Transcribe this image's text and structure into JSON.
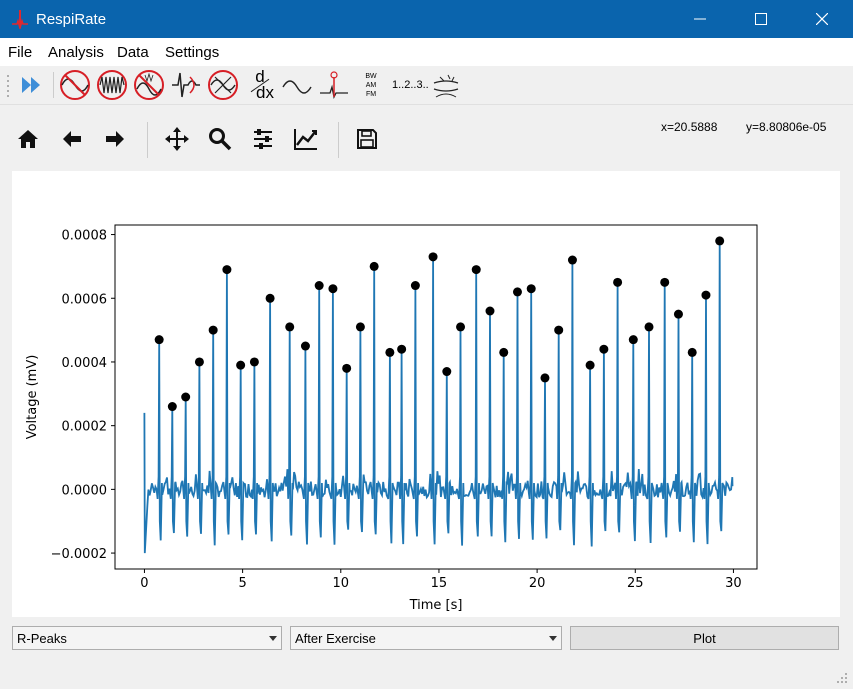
{
  "window": {
    "title": "RespiRate"
  },
  "menu": {
    "items": [
      "File",
      "Analysis",
      "Data",
      "Settings"
    ]
  },
  "toolbar": {
    "icons": [
      "fast-forward-icon",
      "sine-filter-icon",
      "dense-wave-filter-icon",
      "noise-filter-icon",
      "ecg-filter-icon",
      "wave-x-icon",
      "derivative-icon",
      "smooth-wave-icon",
      "peak-marker-icon",
      "bw-am-fm-icon",
      "count-icon",
      "breathing-icon"
    ],
    "deriv_num": "d",
    "deriv_den": "dx",
    "bw": "BW",
    "am": "AM",
    "fm": "FM",
    "count": "1..2..3.."
  },
  "nav": {
    "icons": [
      "home-icon",
      "back-icon",
      "forward-icon",
      "pan-icon",
      "zoom-icon",
      "configure-icon",
      "edit-curves-icon",
      "save-icon"
    ],
    "x_readout": "x=20.5888",
    "y_readout": "y=8.80806e-05"
  },
  "chart_data": {
    "type": "line",
    "xlabel": "Time [s]",
    "ylabel": "Voltage (mV)",
    "xlim": [
      -1.5,
      31.2
    ],
    "ylim": [
      -0.00025,
      0.00083
    ],
    "xticks": [
      0,
      5,
      10,
      15,
      20,
      25,
      30
    ],
    "xtick_labels": [
      "0",
      "5",
      "10",
      "15",
      "20",
      "25",
      "30"
    ],
    "yticks": [
      -0.0002,
      0,
      0.0002,
      0.0004,
      0.0006,
      0.0008
    ],
    "ytick_labels": [
      "−0.0002",
      "0.0000",
      "0.0002",
      "0.0004",
      "0.0006",
      "0.0008"
    ],
    "line_color": "#1f77b4",
    "marker_color": "#000000",
    "peaks": {
      "x": [
        0.75,
        1.42,
        2.1,
        2.8,
        3.5,
        4.2,
        4.9,
        5.6,
        6.4,
        7.4,
        8.2,
        8.9,
        9.6,
        10.3,
        11.0,
        11.7,
        12.5,
        13.1,
        13.8,
        14.7,
        15.4,
        16.1,
        16.9,
        17.6,
        18.3,
        19.0,
        19.7,
        20.4,
        21.1,
        21.8,
        22.7,
        23.4,
        24.1,
        24.9,
        25.7,
        26.5,
        27.2,
        27.9,
        28.6,
        29.3
      ],
      "y": [
        0.00047,
        0.00026,
        0.00029,
        0.0004,
        0.0005,
        0.00069,
        0.00039,
        0.0004,
        0.0006,
        0.00051,
        0.00045,
        0.00064,
        0.00063,
        0.00038,
        0.00051,
        0.0007,
        0.00043,
        0.00044,
        0.00064,
        0.00073,
        0.00037,
        0.00051,
        0.00069,
        0.00056,
        0.00043,
        0.00062,
        0.00063,
        0.00035,
        0.0005,
        0.00072,
        0.00039,
        0.00044,
        0.00065,
        0.00047,
        0.00051,
        0.00065,
        0.00055,
        0.00043,
        0.00061,
        0.00078
      ]
    }
  },
  "controls": {
    "mode": "R-Peaks",
    "dataset": "After Exercise",
    "plot_label": "Plot"
  }
}
